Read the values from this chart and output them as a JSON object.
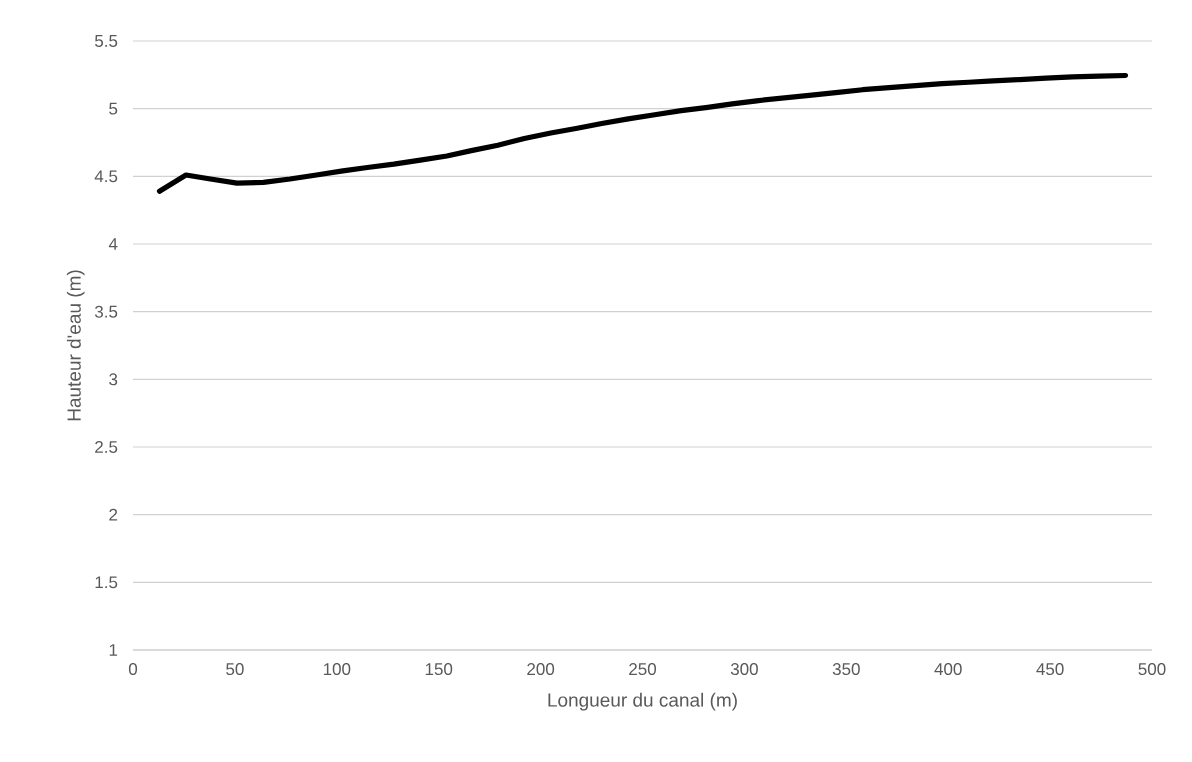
{
  "chart_data": {
    "type": "line",
    "xlabel": "Longueur du canal (m)",
    "ylabel": "Hauteur d'eau (m)",
    "x": [
      13,
      26,
      38,
      51,
      64,
      77,
      90,
      103,
      115,
      128,
      141,
      154,
      166,
      179,
      192,
      205,
      218,
      230,
      243,
      256,
      269,
      282,
      294,
      307,
      320,
      333,
      346,
      358,
      371,
      384,
      397,
      410,
      422,
      435,
      448,
      461,
      474,
      487
    ],
    "series": [
      {
        "color": "#000000",
        "values": [
          4.39,
          4.51,
          4.48,
          4.45,
          4.455,
          4.48,
          4.51,
          4.54,
          4.565,
          4.59,
          4.62,
          4.65,
          4.69,
          4.73,
          4.78,
          4.82,
          4.855,
          4.89,
          4.925,
          4.955,
          4.985,
          5.01,
          5.035,
          5.06,
          5.08,
          5.1,
          5.12,
          5.14,
          5.155,
          5.17,
          5.185,
          5.195,
          5.205,
          5.215,
          5.225,
          5.235,
          5.24,
          5.245
        ]
      }
    ],
    "xlim": [
      0,
      500
    ],
    "ylim": [
      1,
      5.5
    ],
    "xticks": [
      0,
      50,
      100,
      150,
      200,
      250,
      300,
      350,
      400,
      450,
      500
    ],
    "yticks": [
      1,
      1.5,
      2,
      2.5,
      3,
      3.5,
      4,
      4.5,
      5,
      5.5
    ],
    "grid": "y",
    "legend": false,
    "marker": "none",
    "line_style": "solid"
  }
}
